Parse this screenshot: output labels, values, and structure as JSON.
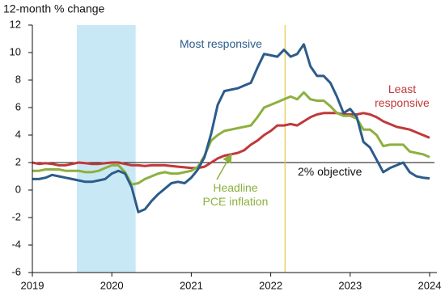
{
  "chart_data": {
    "type": "line",
    "y_axis_label": "12-month % change",
    "x": [
      2019,
      2019.083,
      2019.167,
      2019.25,
      2019.333,
      2019.417,
      2019.5,
      2019.583,
      2019.667,
      2019.75,
      2019.833,
      2019.917,
      2020,
      2020.083,
      2020.167,
      2020.25,
      2020.333,
      2020.417,
      2020.5,
      2020.583,
      2020.667,
      2020.75,
      2020.833,
      2020.917,
      2021,
      2021.083,
      2021.167,
      2021.25,
      2021.333,
      2021.417,
      2021.5,
      2021.583,
      2021.667,
      2021.75,
      2021.833,
      2021.917,
      2022,
      2022.083,
      2022.167,
      2022.25,
      2022.333,
      2022.417,
      2022.5,
      2022.583,
      2022.667,
      2022.75,
      2022.833,
      2022.917,
      2023,
      2023.083,
      2023.167,
      2023.25,
      2023.333,
      2023.417,
      2023.5,
      2023.583,
      2023.667,
      2023.75,
      2023.833,
      2023.917,
      2024
    ],
    "series": [
      {
        "name": "Least\nresponsive",
        "color": "#c0393b",
        "values": [
          2.0,
          1.9,
          1.95,
          1.9,
          1.8,
          1.8,
          1.9,
          2.0,
          1.95,
          1.9,
          1.9,
          1.95,
          2.0,
          2.0,
          1.9,
          1.8,
          1.8,
          1.75,
          1.8,
          1.8,
          1.8,
          1.75,
          1.7,
          1.65,
          1.6,
          1.6,
          1.7,
          2.0,
          2.3,
          2.5,
          2.6,
          2.7,
          2.9,
          3.3,
          3.6,
          4.0,
          4.3,
          4.7,
          4.7,
          4.8,
          4.7,
          5.0,
          5.3,
          5.5,
          5.6,
          5.6,
          5.6,
          5.5,
          5.5,
          5.5,
          5.6,
          5.5,
          5.3,
          5.0,
          4.8,
          4.6,
          4.5,
          4.4,
          4.2,
          4.0,
          3.8
        ]
      },
      {
        "name": "Headline\nPCE inflation",
        "color": "#8db03f",
        "values": [
          1.4,
          1.4,
          1.5,
          1.5,
          1.5,
          1.4,
          1.4,
          1.4,
          1.3,
          1.3,
          1.4,
          1.6,
          1.8,
          1.8,
          1.3,
          0.4,
          0.5,
          0.8,
          1.0,
          1.2,
          1.3,
          1.2,
          1.2,
          1.3,
          1.4,
          1.7,
          2.5,
          3.6,
          4.0,
          4.3,
          4.4,
          4.5,
          4.6,
          4.7,
          5.3,
          6.0,
          6.2,
          6.4,
          6.6,
          6.8,
          6.6,
          7.1,
          6.6,
          6.5,
          6.5,
          6.1,
          5.6,
          5.4,
          5.4,
          5.2,
          4.4,
          4.4,
          4.0,
          3.2,
          3.3,
          3.3,
          3.3,
          2.8,
          2.7,
          2.6,
          2.4
        ]
      },
      {
        "name": "Most responsive",
        "color": "#2b5c8a",
        "values": [
          0.8,
          0.8,
          0.9,
          1.1,
          1.0,
          0.9,
          0.8,
          0.7,
          0.6,
          0.6,
          0.7,
          0.8,
          1.2,
          1.4,
          1.2,
          0.2,
          -1.6,
          -1.4,
          -0.8,
          -0.3,
          0.1,
          0.5,
          0.6,
          0.5,
          0.9,
          1.5,
          2.4,
          4.1,
          6.2,
          7.2,
          7.3,
          7.4,
          7.6,
          7.8,
          8.9,
          9.9,
          9.8,
          9.7,
          10.2,
          9.7,
          9.9,
          10.6,
          9.0,
          8.3,
          8.3,
          7.8,
          6.8,
          5.6,
          5.9,
          5.3,
          3.5,
          3.1,
          2.2,
          1.3,
          1.6,
          1.8,
          2.0,
          1.3,
          1.0,
          0.9,
          0.85
        ]
      }
    ],
    "xlim": [
      2019,
      2024.06
    ],
    "xticks": [
      2019,
      2020,
      2021,
      2022,
      2023,
      2024
    ],
    "ylim": [
      -6,
      12
    ],
    "yticks": [
      -6,
      -4,
      -2,
      0,
      2,
      4,
      6,
      8,
      10,
      12
    ],
    "shaded_span": [
      2019.56,
      2020.3
    ],
    "shade_color": "#c9e8f5",
    "marker_x": 2022.18,
    "marker_color": "#e8c840",
    "reference_line": {
      "value": 2,
      "label": "2% objective"
    }
  }
}
